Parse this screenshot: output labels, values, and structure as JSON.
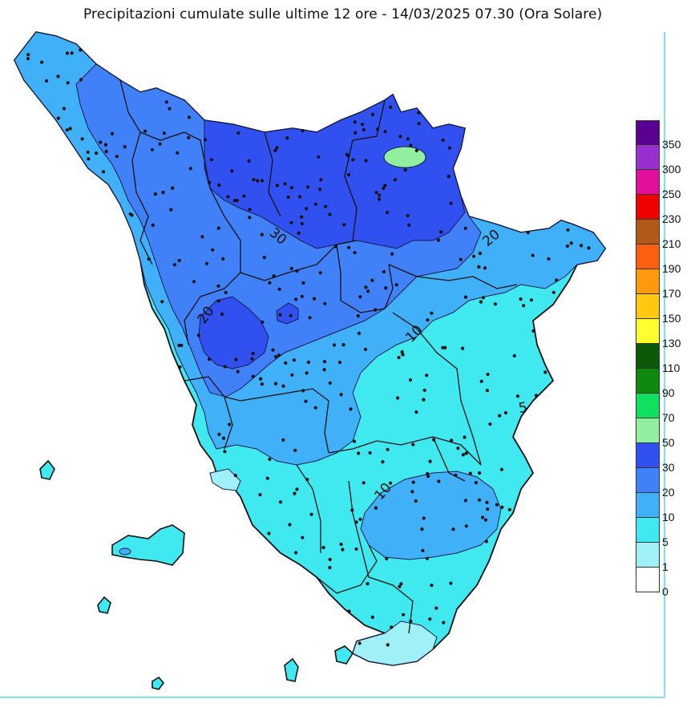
{
  "title": "Precipitazioni cumulate sulle ultime 12 ore - 14/03/2025 07.30 (Ora Solare)",
  "colors": {
    "sea": "#ffffff",
    "outline": "#111111",
    "contour": "#1a1a4a",
    "frame": "#5fd6e0"
  },
  "contour_labels": [
    "30",
    "20",
    "20",
    "10",
    "5",
    "10"
  ],
  "legend": {
    "labels": [
      "350",
      "300",
      "250",
      "230",
      "210",
      "190",
      "170",
      "150",
      "130",
      "110",
      "90",
      "70",
      "50",
      "30",
      "20",
      "10",
      "5",
      "1",
      "0"
    ],
    "colors": [
      "#5a0090",
      "#9a2fd0",
      "#e0109a",
      "#f00000",
      "#b05a1a",
      "#ff6010",
      "#ff9a10",
      "#ffc810",
      "#ffff30",
      "#0a5a0a",
      "#0f8a0f",
      "#10e060",
      "#90f0a0",
      "#3050f0",
      "#4080f8",
      "#40b0f8",
      "#40e8f0",
      "#a0f0f8",
      "#ffffff"
    ]
  }
}
